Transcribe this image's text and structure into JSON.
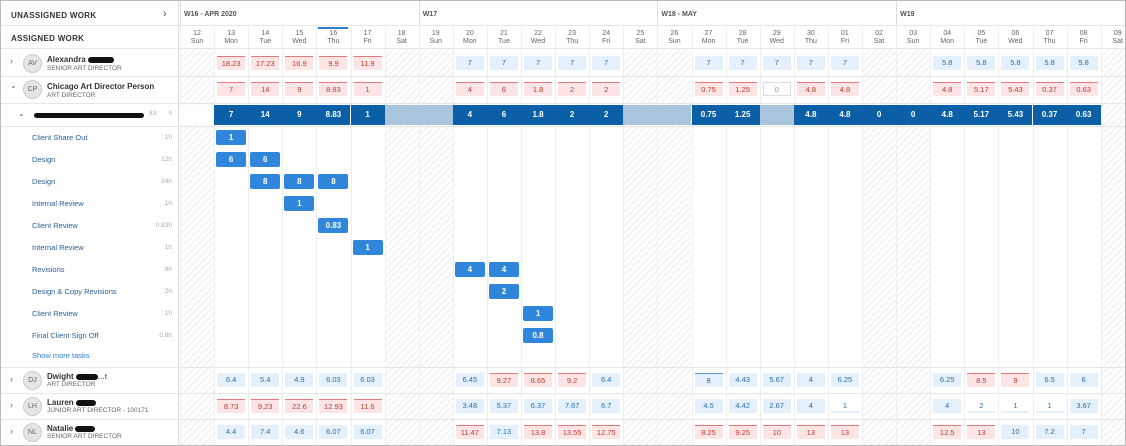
{
  "left": {
    "unassigned_label": "UNASSIGNED WORK",
    "assigned_label": "ASSIGNED WORK",
    "people": [
      {
        "initials": "AV",
        "name": "Alexandra",
        "role": "SENIOR ART DIRECTOR",
        "chevron": "›"
      },
      {
        "initials": "CP",
        "name": "Chicago Art Director Person",
        "role": "ART DIRECTOR",
        "chevron": "⌄"
      }
    ],
    "project": {
      "hours": "83",
      "unit": "h"
    },
    "tasks": [
      {
        "name": "Client Share Out",
        "hours": "1h"
      },
      {
        "name": "Design",
        "hours": "12h"
      },
      {
        "name": "Design",
        "hours": "24h"
      },
      {
        "name": "Internal Review",
        "hours": "1h"
      },
      {
        "name": "Client Review",
        "hours": "0.83h"
      },
      {
        "name": "Internal Review",
        "hours": "1h"
      },
      {
        "name": "Revisions",
        "hours": "8h"
      },
      {
        "name": "Design & Copy Revisions",
        "hours": "2h"
      },
      {
        "name": "Client Review",
        "hours": "1h"
      },
      {
        "name": "Final Client Sign Off",
        "hours": "0.8h"
      }
    ],
    "show_more": "Show more tasks",
    "people_bottom": [
      {
        "initials": "DJ",
        "name": "Dwight",
        "role": "ART DIRECTOR",
        "suffix": "…t"
      },
      {
        "initials": "LH",
        "name": "Lauren",
        "role": "JUNIOR ART DIRECTOR - 100171"
      },
      {
        "initials": "NL",
        "name": "Natalie",
        "role": "SENIOR ART DIRECTOR"
      }
    ]
  },
  "weeks": [
    {
      "label": "W16 - APR 2020",
      "col": 0
    },
    {
      "label": "W17",
      "col": 7
    },
    {
      "label": "W18 - MAY",
      "col": 14
    },
    {
      "label": "W19",
      "col": 21
    }
  ],
  "days": [
    {
      "d": "12",
      "w": "Sun"
    },
    {
      "d": "13",
      "w": "Mon"
    },
    {
      "d": "14",
      "w": "Tue"
    },
    {
      "d": "15",
      "w": "Wed"
    },
    {
      "d": "16",
      "w": "Thu"
    },
    {
      "d": "17",
      "w": "Fri"
    },
    {
      "d": "18",
      "w": "Sat"
    },
    {
      "d": "19",
      "w": "Sun"
    },
    {
      "d": "20",
      "w": "Mon"
    },
    {
      "d": "21",
      "w": "Tue"
    },
    {
      "d": "22",
      "w": "Wed"
    },
    {
      "d": "23",
      "w": "Thu"
    },
    {
      "d": "24",
      "w": "Fri"
    },
    {
      "d": "25",
      "w": "Sat"
    },
    {
      "d": "26",
      "w": "Sun"
    },
    {
      "d": "27",
      "w": "Mon"
    },
    {
      "d": "28",
      "w": "Tue"
    },
    {
      "d": "29",
      "w": "Wed"
    },
    {
      "d": "30",
      "w": "Thu"
    },
    {
      "d": "01",
      "w": "Fri"
    },
    {
      "d": "02",
      "w": "Sat"
    },
    {
      "d": "03",
      "w": "Sun"
    },
    {
      "d": "04",
      "w": "Mon"
    },
    {
      "d": "05",
      "w": "Tue"
    },
    {
      "d": "06",
      "w": "Wed"
    },
    {
      "d": "07",
      "w": "Thu"
    },
    {
      "d": "08",
      "w": "Fri"
    },
    {
      "d": "09",
      "w": "Sat"
    }
  ],
  "today_col": 4,
  "rows": {
    "alexandra": [
      {
        "c": 1,
        "v": "18.23",
        "t": "red"
      },
      {
        "c": 2,
        "v": "17.23",
        "t": "red"
      },
      {
        "c": 3,
        "v": "16.9",
        "t": "red"
      },
      {
        "c": 4,
        "v": "9.9",
        "t": "red"
      },
      {
        "c": 5,
        "v": "11.9",
        "t": "red"
      },
      {
        "c": 8,
        "v": "7",
        "t": "blue"
      },
      {
        "c": 9,
        "v": "7",
        "t": "blue"
      },
      {
        "c": 10,
        "v": "7",
        "t": "blue"
      },
      {
        "c": 11,
        "v": "7",
        "t": "blue"
      },
      {
        "c": 12,
        "v": "7",
        "t": "blue"
      },
      {
        "c": 15,
        "v": "7",
        "t": "blue"
      },
      {
        "c": 16,
        "v": "7",
        "t": "blue"
      },
      {
        "c": 17,
        "v": "7",
        "t": "blue"
      },
      {
        "c": 18,
        "v": "7",
        "t": "blue"
      },
      {
        "c": 19,
        "v": "7",
        "t": "blue"
      },
      {
        "c": 22,
        "v": "5.8",
        "t": "blue"
      },
      {
        "c": 23,
        "v": "5.8",
        "t": "blue"
      },
      {
        "c": 24,
        "v": "5.8",
        "t": "blue"
      },
      {
        "c": 25,
        "v": "5.8",
        "t": "blue"
      },
      {
        "c": 26,
        "v": "5.8",
        "t": "blue"
      }
    ],
    "chicago": [
      {
        "c": 1,
        "v": "7",
        "t": "red"
      },
      {
        "c": 2,
        "v": "14",
        "t": "red"
      },
      {
        "c": 3,
        "v": "9",
        "t": "red"
      },
      {
        "c": 4,
        "v": "8.83",
        "t": "red"
      },
      {
        "c": 5,
        "v": "1",
        "t": "red"
      },
      {
        "c": 8,
        "v": "4",
        "t": "red"
      },
      {
        "c": 9,
        "v": "6",
        "t": "red"
      },
      {
        "c": 10,
        "v": "1.8",
        "t": "red"
      },
      {
        "c": 11,
        "v": "2",
        "t": "red"
      },
      {
        "c": 12,
        "v": "2",
        "t": "red"
      },
      {
        "c": 15,
        "v": "0.75",
        "t": "red"
      },
      {
        "c": 16,
        "v": "1.25",
        "t": "red"
      },
      {
        "c": 17,
        "v": "0",
        "t": "empty"
      },
      {
        "c": 18,
        "v": "4.8",
        "t": "red"
      },
      {
        "c": 19,
        "v": "4.8",
        "t": "red"
      },
      {
        "c": 22,
        "v": "4.8",
        "t": "red"
      },
      {
        "c": 23,
        "v": "5.17",
        "t": "red"
      },
      {
        "c": 24,
        "v": "5.43",
        "t": "red"
      },
      {
        "c": 25,
        "v": "0.37",
        "t": "red"
      },
      {
        "c": 26,
        "v": "0.63",
        "t": "red"
      }
    ],
    "project": [
      {
        "c": 1,
        "v": "7"
      },
      {
        "c": 2,
        "v": "14"
      },
      {
        "c": 3,
        "v": "9"
      },
      {
        "c": 4,
        "v": "8.83"
      },
      {
        "c": 5,
        "v": "1"
      },
      {
        "c": 8,
        "v": "4"
      },
      {
        "c": 9,
        "v": "6"
      },
      {
        "c": 10,
        "v": "1.8"
      },
      {
        "c": 11,
        "v": "2"
      },
      {
        "c": 12,
        "v": "2"
      },
      {
        "c": 15,
        "v": "0.75"
      },
      {
        "c": 16,
        "v": "1.25"
      },
      {
        "c": 18,
        "v": "4.8"
      },
      {
        "c": 19,
        "v": "4.8"
      },
      {
        "c": 20,
        "v": "0"
      },
      {
        "c": 21,
        "v": "0"
      },
      {
        "c": 22,
        "v": "4.8"
      },
      {
        "c": 23,
        "v": "5.17"
      },
      {
        "c": 24,
        "v": "5.43"
      },
      {
        "c": 25,
        "v": "0.37"
      },
      {
        "c": 26,
        "v": "0.63"
      }
    ],
    "project_gaps": [
      {
        "c": 6,
        "n": 2
      },
      {
        "c": 13,
        "n": 2
      },
      {
        "c": 17,
        "n": 1
      }
    ],
    "tasks": [
      {
        "row": 0,
        "bars": [
          {
            "c": 1,
            "n": 1,
            "v": "1"
          }
        ]
      },
      {
        "row": 1,
        "bars": [
          {
            "c": 1,
            "n": 1,
            "v": "6"
          },
          {
            "c": 2,
            "n": 1,
            "v": "6"
          }
        ]
      },
      {
        "row": 2,
        "bars": [
          {
            "c": 2,
            "n": 1,
            "v": "8"
          },
          {
            "c": 3,
            "n": 1,
            "v": "8"
          },
          {
            "c": 4,
            "n": 1,
            "v": "8"
          }
        ]
      },
      {
        "row": 3,
        "bars": [
          {
            "c": 3,
            "n": 1,
            "v": "1"
          }
        ]
      },
      {
        "row": 4,
        "bars": [
          {
            "c": 4,
            "n": 1,
            "v": "0.83"
          }
        ]
      },
      {
        "row": 5,
        "bars": [
          {
            "c": 5,
            "n": 1,
            "v": "1"
          }
        ]
      },
      {
        "row": 6,
        "bars": [
          {
            "c": 8,
            "n": 1,
            "v": "4"
          },
          {
            "c": 9,
            "n": 1,
            "v": "4"
          }
        ]
      },
      {
        "row": 7,
        "bars": [
          {
            "c": 9,
            "n": 1,
            "v": "2"
          }
        ]
      },
      {
        "row": 8,
        "bars": [
          {
            "c": 10,
            "n": 1,
            "v": "1"
          }
        ]
      },
      {
        "row": 9,
        "bars": [
          {
            "c": 10,
            "n": 1,
            "v": "0.8"
          }
        ]
      }
    ],
    "dwight": [
      {
        "c": 1,
        "v": "6.4",
        "t": "blue"
      },
      {
        "c": 2,
        "v": "5.4",
        "t": "blue"
      },
      {
        "c": 3,
        "v": "4.9",
        "t": "blue"
      },
      {
        "c": 4,
        "v": "6.03",
        "t": "blue"
      },
      {
        "c": 5,
        "v": "6.03",
        "t": "blue"
      },
      {
        "c": 8,
        "v": "6.45",
        "t": "blue"
      },
      {
        "c": 9,
        "v": "9.27",
        "t": "red"
      },
      {
        "c": 10,
        "v": "8.65",
        "t": "red"
      },
      {
        "c": 11,
        "v": "9.2",
        "t": "red"
      },
      {
        "c": 12,
        "v": "6.4",
        "t": "blue"
      },
      {
        "c": 15,
        "v": "8",
        "t": "bluetop"
      },
      {
        "c": 16,
        "v": "4.43",
        "t": "blue"
      },
      {
        "c": 17,
        "v": "5.67",
        "t": "blue"
      },
      {
        "c": 18,
        "v": "4",
        "t": "blue"
      },
      {
        "c": 19,
        "v": "6.25",
        "t": "blue"
      },
      {
        "c": 22,
        "v": "6.25",
        "t": "blue"
      },
      {
        "c": 23,
        "v": "8.5",
        "t": "red"
      },
      {
        "c": 24,
        "v": "9",
        "t": "red"
      },
      {
        "c": 25,
        "v": "6.5",
        "t": "blue"
      },
      {
        "c": 26,
        "v": "6",
        "t": "blue"
      }
    ],
    "lauren": [
      {
        "c": 1,
        "v": "8.73",
        "t": "red"
      },
      {
        "c": 2,
        "v": "9.23",
        "t": "red"
      },
      {
        "c": 3,
        "v": "22.6",
        "t": "red"
      },
      {
        "c": 4,
        "v": "12.93",
        "t": "red"
      },
      {
        "c": 5,
        "v": "11.6",
        "t": "red"
      },
      {
        "c": 8,
        "v": "3.48",
        "t": "blue"
      },
      {
        "c": 9,
        "v": "5.37",
        "t": "blue"
      },
      {
        "c": 10,
        "v": "6.37",
        "t": "blue"
      },
      {
        "c": 11,
        "v": "7.67",
        "t": "blue"
      },
      {
        "c": 12,
        "v": "6.7",
        "t": "blue"
      },
      {
        "c": 15,
        "v": "4.5",
        "t": "blue"
      },
      {
        "c": 16,
        "v": "4.42",
        "t": "blue"
      },
      {
        "c": 17,
        "v": "2.67",
        "t": "blue"
      },
      {
        "c": 18,
        "v": "4",
        "t": "blue"
      },
      {
        "c": 19,
        "v": "1",
        "t": "partial"
      },
      {
        "c": 22,
        "v": "4",
        "t": "blue"
      },
      {
        "c": 23,
        "v": "2",
        "t": "partial"
      },
      {
        "c": 24,
        "v": "1",
        "t": "partial"
      },
      {
        "c": 25,
        "v": "1",
        "t": "partial"
      },
      {
        "c": 26,
        "v": "3.67",
        "t": "blue"
      }
    ],
    "natalie": [
      {
        "c": 1,
        "v": "4.4",
        "t": "blue"
      },
      {
        "c": 2,
        "v": "7.4",
        "t": "blue"
      },
      {
        "c": 3,
        "v": "4.6",
        "t": "blue"
      },
      {
        "c": 4,
        "v": "6.07",
        "t": "blue"
      },
      {
        "c": 5,
        "v": "6.07",
        "t": "blue"
      },
      {
        "c": 8,
        "v": "11.47",
        "t": "red"
      },
      {
        "c": 9,
        "v": "7.13",
        "t": "blue"
      },
      {
        "c": 10,
        "v": "13.8",
        "t": "red"
      },
      {
        "c": 11,
        "v": "13.55",
        "t": "red"
      },
      {
        "c": 12,
        "v": "12.75",
        "t": "red"
      },
      {
        "c": 15,
        "v": "8.25",
        "t": "red"
      },
      {
        "c": 16,
        "v": "9.25",
        "t": "red"
      },
      {
        "c": 17,
        "v": "10",
        "t": "red"
      },
      {
        "c": 18,
        "v": "13",
        "t": "red"
      },
      {
        "c": 19,
        "v": "13",
        "t": "red"
      },
      {
        "c": 22,
        "v": "12.5",
        "t": "red"
      },
      {
        "c": 23,
        "v": "13",
        "t": "red"
      },
      {
        "c": 24,
        "v": "10",
        "t": "blue"
      },
      {
        "c": 25,
        "v": "7.2",
        "t": "blue"
      },
      {
        "c": 26,
        "v": "7",
        "t": "blue"
      }
    ]
  },
  "colors": {
    "project": "#0a5fa6",
    "task": "#2f86da",
    "over": "#fde5e6",
    "under": "#e4f0fb"
  }
}
